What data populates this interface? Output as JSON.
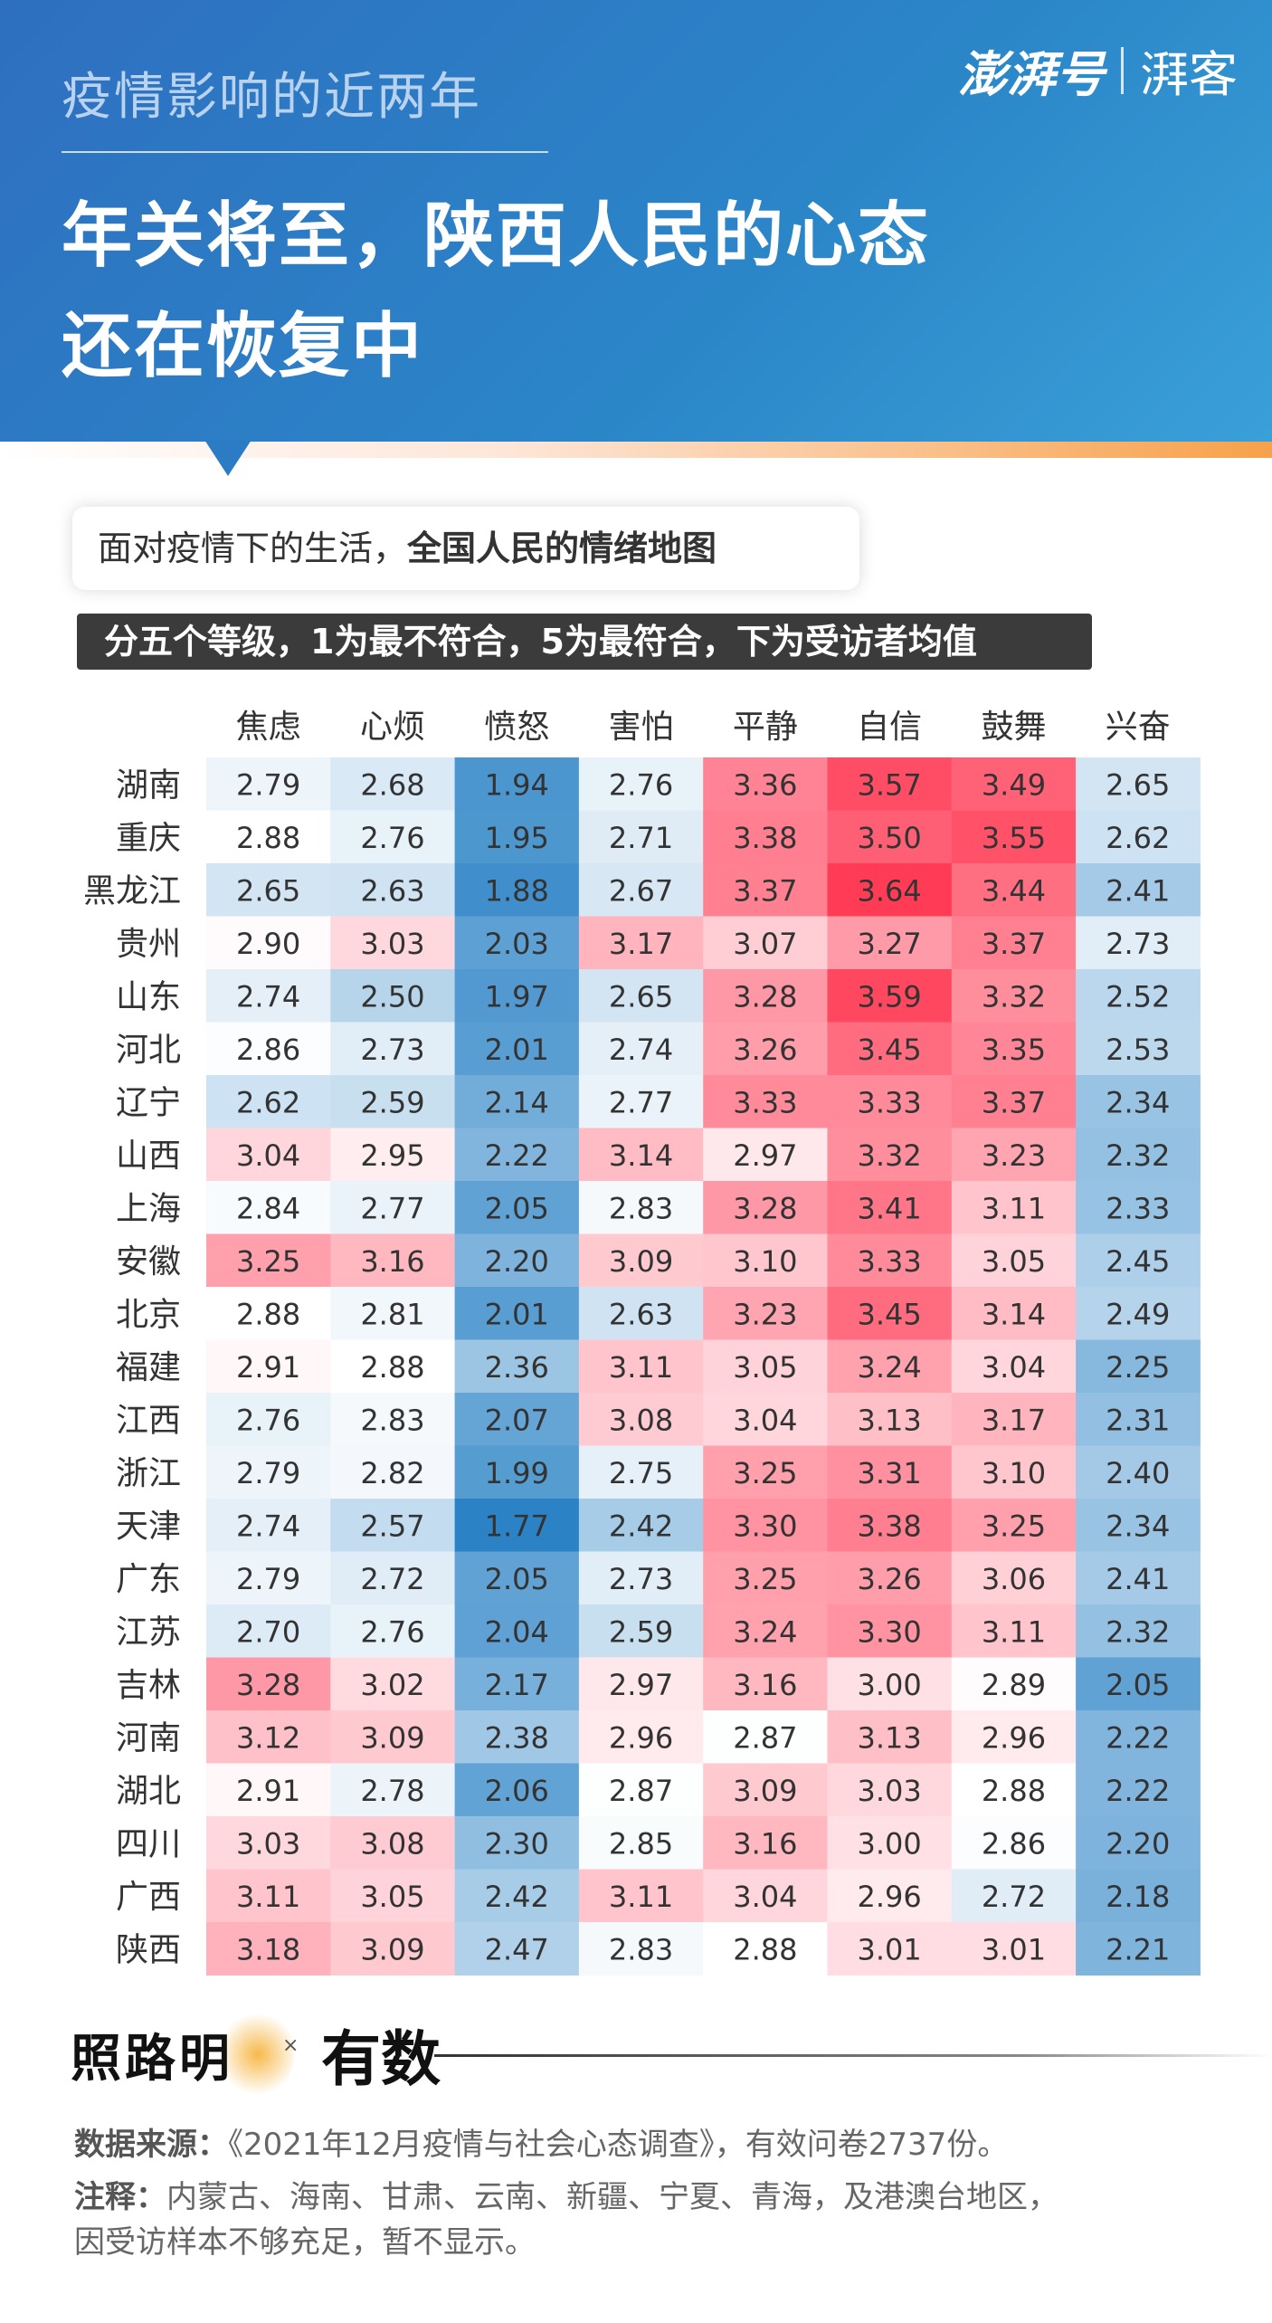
{
  "header": {
    "kicker": "疫情影响的近两年",
    "title_line1": "年关将至，陕西人民的心态",
    "title_line2": "还在恢复中",
    "logo_main": "澎湃号",
    "logo_sub": "湃客"
  },
  "bubble": {
    "prefix": "面对疫情下的生活，",
    "bold": "全国人民的情绪地图"
  },
  "banner": "分五个等级，1为最不符合，5为最符合，下为受访者均值",
  "chart_data": {
    "type": "heatmap",
    "title": "全国人民的情绪地图",
    "categories": [
      "焦虑",
      "心烦",
      "愤怒",
      "害怕",
      "平静",
      "自信",
      "鼓舞",
      "兴奋"
    ],
    "rows": [
      "湖南",
      "重庆",
      "黑龙江",
      "贵州",
      "山东",
      "河北",
      "辽宁",
      "山西",
      "上海",
      "安徽",
      "北京",
      "福建",
      "江西",
      "浙江",
      "天津",
      "广东",
      "江苏",
      "吉林",
      "河南",
      "湖北",
      "四川",
      "广西",
      "陕西"
    ],
    "values": [
      [
        2.79,
        2.68,
        1.94,
        2.76,
        3.36,
        3.57,
        3.49,
        2.65
      ],
      [
        2.88,
        2.76,
        1.95,
        2.71,
        3.38,
        3.5,
        3.55,
        2.62
      ],
      [
        2.65,
        2.63,
        1.88,
        2.67,
        3.37,
        3.64,
        3.44,
        2.41
      ],
      [
        2.9,
        3.03,
        2.03,
        3.17,
        3.07,
        3.27,
        3.37,
        2.73
      ],
      [
        2.74,
        2.5,
        1.97,
        2.65,
        3.28,
        3.59,
        3.32,
        2.52
      ],
      [
        2.86,
        2.73,
        2.01,
        2.74,
        3.26,
        3.45,
        3.35,
        2.53
      ],
      [
        2.62,
        2.59,
        2.14,
        2.77,
        3.33,
        3.33,
        3.37,
        2.34
      ],
      [
        3.04,
        2.95,
        2.22,
        3.14,
        2.97,
        3.32,
        3.23,
        2.32
      ],
      [
        2.84,
        2.77,
        2.05,
        2.83,
        3.28,
        3.41,
        3.11,
        2.33
      ],
      [
        3.25,
        3.16,
        2.2,
        3.09,
        3.1,
        3.33,
        3.05,
        2.45
      ],
      [
        2.88,
        2.81,
        2.01,
        2.63,
        3.23,
        3.45,
        3.14,
        2.49
      ],
      [
        2.91,
        2.88,
        2.36,
        3.11,
        3.05,
        3.24,
        3.04,
        2.25
      ],
      [
        2.76,
        2.83,
        2.07,
        3.08,
        3.04,
        3.13,
        3.17,
        2.31
      ],
      [
        2.79,
        2.82,
        1.99,
        2.75,
        3.25,
        3.31,
        3.1,
        2.4
      ],
      [
        2.74,
        2.57,
        1.77,
        2.42,
        3.3,
        3.38,
        3.25,
        2.34
      ],
      [
        2.79,
        2.72,
        2.05,
        2.73,
        3.25,
        3.26,
        3.06,
        2.41
      ],
      [
        2.7,
        2.76,
        2.04,
        2.59,
        3.24,
        3.3,
        3.11,
        2.32
      ],
      [
        3.28,
        3.02,
        2.17,
        2.97,
        3.16,
        3.0,
        2.89,
        2.05
      ],
      [
        3.12,
        3.09,
        2.38,
        2.96,
        2.87,
        3.13,
        2.96,
        2.22
      ],
      [
        2.91,
        2.78,
        2.06,
        2.87,
        3.09,
        3.03,
        2.88,
        2.22
      ],
      [
        3.03,
        3.08,
        2.3,
        2.85,
        3.16,
        3.0,
        2.86,
        2.2
      ],
      [
        3.11,
        3.05,
        2.42,
        3.11,
        3.04,
        2.96,
        2.72,
        2.18
      ],
      [
        3.18,
        3.09,
        2.47,
        2.83,
        2.88,
        3.01,
        3.01,
        2.21
      ]
    ],
    "scale": {
      "min": 1.77,
      "mid": 2.88,
      "max": 3.64,
      "low_color": "#2b83c6",
      "high_color": "#ff3b55"
    }
  },
  "footer": {
    "logo1": "照路明",
    "times": "×",
    "logo2": "有数",
    "source_label": "数据来源：",
    "source_text": "《2021年12月疫情与社会心态调查》，有效问卷2737份。",
    "note_label": "注释：",
    "note_text1": "内蒙古、海南、甘肃、云南、新疆、宁夏、青海，及港澳台地区，",
    "note_text2": "因受访样本不够充足，暂不显示。"
  }
}
